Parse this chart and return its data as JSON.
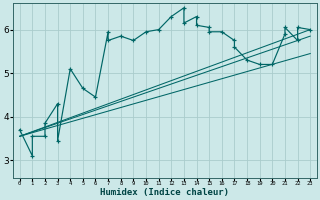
{
  "xlabel": "Humidex (Indice chaleur)",
  "bg_color": "#cce8e8",
  "grid_color": "#aacccc",
  "line_color": "#006666",
  "xlim": [
    -0.5,
    23.5
  ],
  "ylim": [
    2.6,
    6.6
  ],
  "yticks": [
    3,
    4,
    5,
    6
  ],
  "xticks": [
    0,
    1,
    2,
    3,
    4,
    5,
    6,
    7,
    8,
    9,
    10,
    11,
    12,
    13,
    14,
    15,
    16,
    17,
    18,
    19,
    20,
    21,
    22,
    23
  ],
  "main_x": [
    0,
    1,
    1,
    2,
    2,
    3,
    3,
    4,
    5,
    6,
    7,
    7,
    8,
    9,
    10,
    11,
    12,
    13,
    13,
    14,
    14,
    15,
    15,
    16,
    17,
    17,
    18,
    19,
    20,
    21,
    21,
    22,
    22,
    23
  ],
  "main_y": [
    3.7,
    3.1,
    3.55,
    3.55,
    3.85,
    4.3,
    3.45,
    5.1,
    4.65,
    4.45,
    5.95,
    5.75,
    5.85,
    5.75,
    5.95,
    6.0,
    6.3,
    6.5,
    6.15,
    6.3,
    6.1,
    6.05,
    5.95,
    5.95,
    5.75,
    5.6,
    5.3,
    5.2,
    5.2,
    5.9,
    6.05,
    5.75,
    6.05,
    6.0
  ],
  "line1_x": [
    0,
    23
  ],
  "line1_y": [
    3.55,
    5.85
  ],
  "line2_x": [
    0,
    23
  ],
  "line2_y": [
    3.55,
    5.45
  ],
  "line3_x": [
    0,
    23
  ],
  "line3_y": [
    3.55,
    6.0
  ]
}
